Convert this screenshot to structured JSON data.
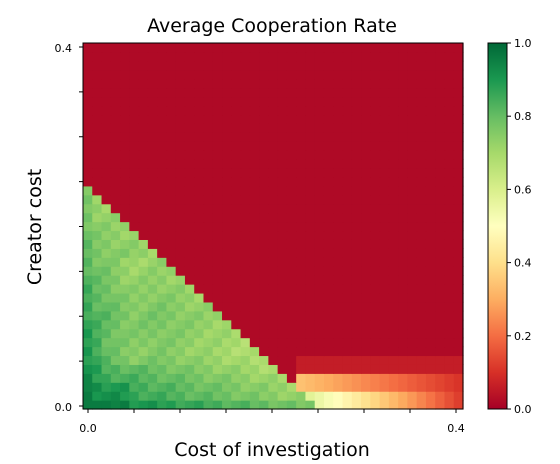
{
  "chart_data": {
    "type": "heatmap",
    "title": "Average Cooperation Rate",
    "xlabel": "Cost of investigation",
    "ylabel": "Creator cost",
    "xlim": [
      0.0,
      0.4
    ],
    "ylim": [
      0.0,
      0.4
    ],
    "x_tick_labels": [
      "0.0",
      "0.4"
    ],
    "y_tick_labels": [
      "0.0",
      "0.4"
    ],
    "grid_resolution": [
      41,
      41
    ],
    "colormap": "RdYlGn",
    "value_range": [
      0.0,
      1.0
    ],
    "colorbar_ticks": [
      0.0,
      0.2,
      0.4,
      0.6,
      0.8,
      1.0
    ],
    "colorbar_tick_labels": [
      "0.0",
      "0.2",
      "0.4",
      "0.6",
      "0.8",
      "1.0"
    ],
    "region_summary": [
      {
        "region": "creator_cost + investigation_cost < ~0.245 (lower-left triangle)",
        "value_range": [
          0.7,
          0.95
        ]
      },
      {
        "region": "lower-left corner",
        "value_range": [
          0.9,
          0.95
        ]
      },
      {
        "region": "near the boundary",
        "value_range": [
          0.65,
          0.75
        ]
      },
      {
        "region": "cost of investigation ~0.22-0.29, creator cost ~0.0",
        "value_range": [
          0.45,
          0.55
        ]
      },
      {
        "region": "low creator cost band, cost of investigation >0.3",
        "value_range": [
          0.1,
          0.2
        ]
      },
      {
        "region": "rest of plane",
        "value_range": [
          0.0,
          0.03
        ]
      }
    ]
  }
}
